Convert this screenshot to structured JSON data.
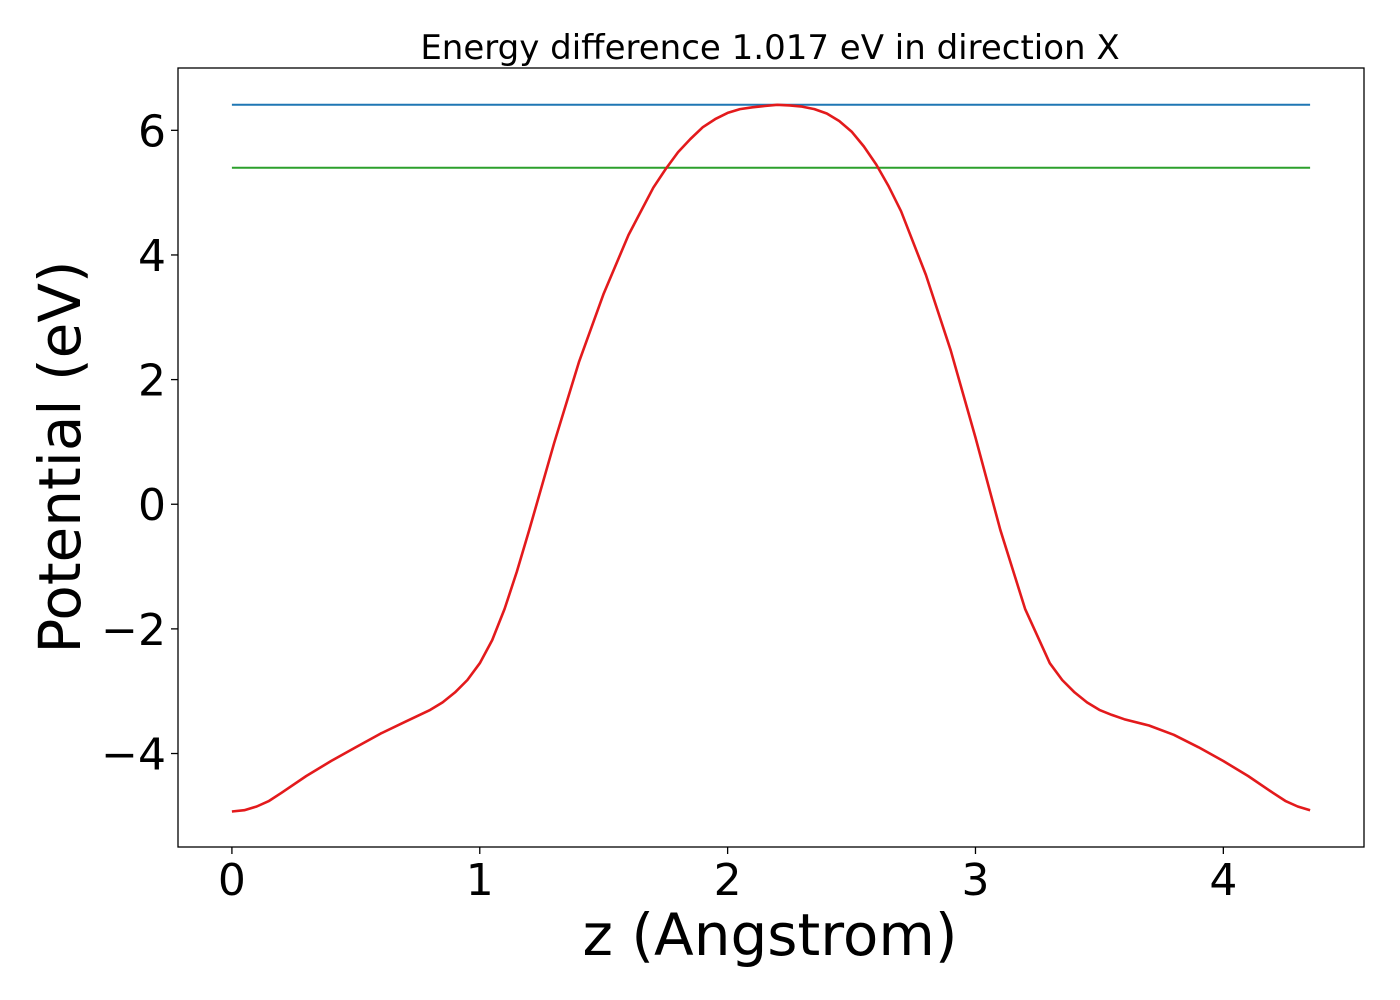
{
  "chart_data": {
    "type": "line",
    "title": "Energy difference 1.017 eV in direction X",
    "xlabel": "z (Angstrom)",
    "ylabel": "Potential (eV)",
    "xlim": [
      -0.2175,
      4.5675
    ],
    "ylim": [
      -5.5,
      7.0
    ],
    "xticks": [
      0,
      1,
      2,
      3,
      4
    ],
    "xtick_labels": [
      "0",
      "1",
      "2",
      "3",
      "4"
    ],
    "yticks": [
      -4,
      -2,
      0,
      2,
      4,
      6
    ],
    "ytick_labels": [
      "−4",
      "−2",
      "0",
      "2",
      "4",
      "6"
    ],
    "grid": false,
    "series": [
      {
        "color": "#1f77b4",
        "x": [
          0,
          4.35
        ],
        "y": [
          6.41,
          6.41
        ]
      },
      {
        "color": "#2ca02c",
        "x": [
          0,
          4.35
        ],
        "y": [
          5.4,
          5.4
        ]
      },
      {
        "color": "#e31a1c",
        "x": [
          0.0,
          0.05,
          0.1,
          0.15,
          0.2,
          0.3,
          0.4,
          0.5,
          0.6,
          0.7,
          0.8,
          0.85,
          0.9,
          0.95,
          1.0,
          1.05,
          1.1,
          1.15,
          1.2,
          1.3,
          1.4,
          1.5,
          1.6,
          1.7,
          1.75,
          1.8,
          1.85,
          1.9,
          1.95,
          2.0,
          2.05,
          2.1,
          2.15,
          2.2,
          2.25,
          2.3,
          2.35,
          2.4,
          2.45,
          2.5,
          2.55,
          2.6,
          2.65,
          2.7,
          2.8,
          2.9,
          3.0,
          3.1,
          3.2,
          3.3,
          3.35,
          3.4,
          3.45,
          3.5,
          3.55,
          3.6,
          3.7,
          3.8,
          3.9,
          4.0,
          4.1,
          4.2,
          4.25,
          4.3,
          4.35
        ],
        "y": [
          -4.93,
          -4.91,
          -4.85,
          -4.76,
          -4.63,
          -4.36,
          -4.12,
          -3.9,
          -3.68,
          -3.49,
          -3.3,
          -3.18,
          -3.02,
          -2.82,
          -2.55,
          -2.18,
          -1.68,
          -1.08,
          -0.41,
          0.98,
          2.28,
          3.38,
          4.32,
          5.08,
          5.38,
          5.65,
          5.86,
          6.05,
          6.18,
          6.28,
          6.34,
          6.37,
          6.39,
          6.41,
          6.4,
          6.38,
          6.34,
          6.27,
          6.15,
          5.98,
          5.74,
          5.45,
          5.1,
          4.7,
          3.68,
          2.47,
          1.07,
          -0.41,
          -1.68,
          -2.55,
          -2.82,
          -3.02,
          -3.18,
          -3.3,
          -3.38,
          -3.45,
          -3.55,
          -3.7,
          -3.9,
          -4.12,
          -4.36,
          -4.63,
          -4.76,
          -4.85,
          -4.91
        ]
      }
    ]
  }
}
